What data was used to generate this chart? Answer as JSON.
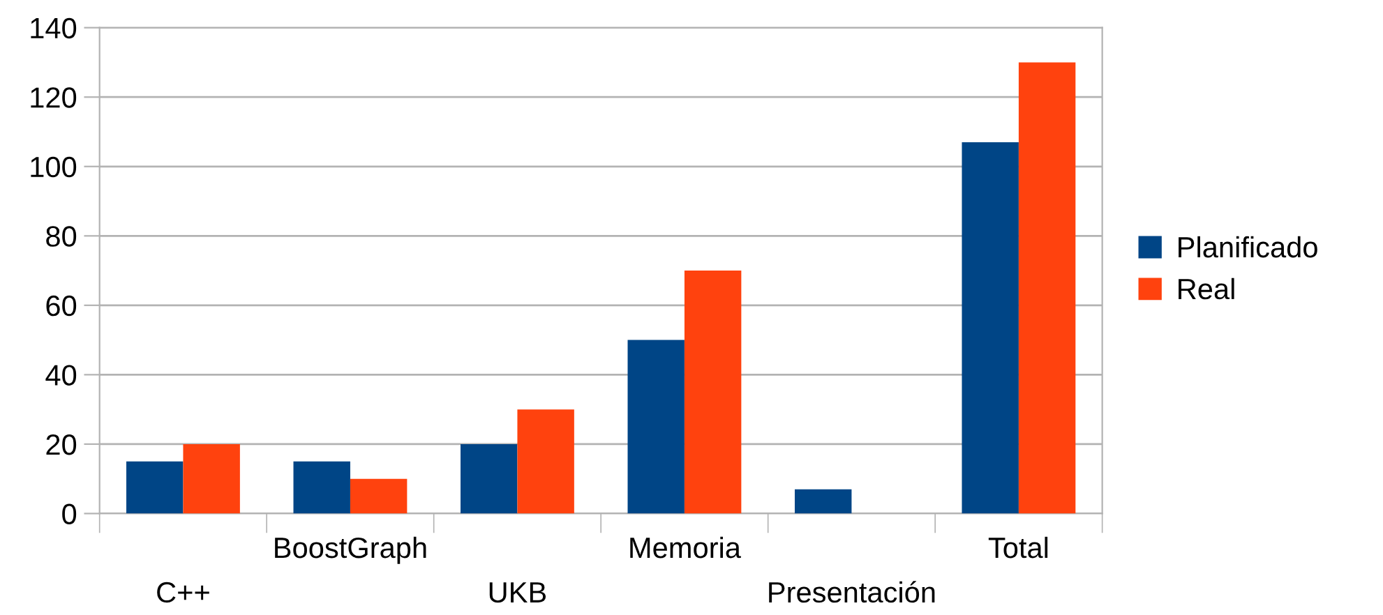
{
  "chart_data": {
    "type": "bar",
    "categories": [
      "C++",
      "BoostGraph",
      "UKB",
      "Memoria",
      "Presentación",
      "Total"
    ],
    "series": [
      {
        "name": "Planificado",
        "color": "#004586",
        "values": [
          15,
          15,
          20,
          50,
          7,
          107
        ]
      },
      {
        "name": "Real",
        "color": "#ff420e",
        "values": [
          20,
          10,
          30,
          70,
          null,
          130
        ]
      }
    ],
    "ylim": [
      0,
      140
    ],
    "yticks": [
      0,
      20,
      40,
      60,
      80,
      100,
      120,
      140
    ],
    "grid": "y",
    "legend": "right"
  }
}
